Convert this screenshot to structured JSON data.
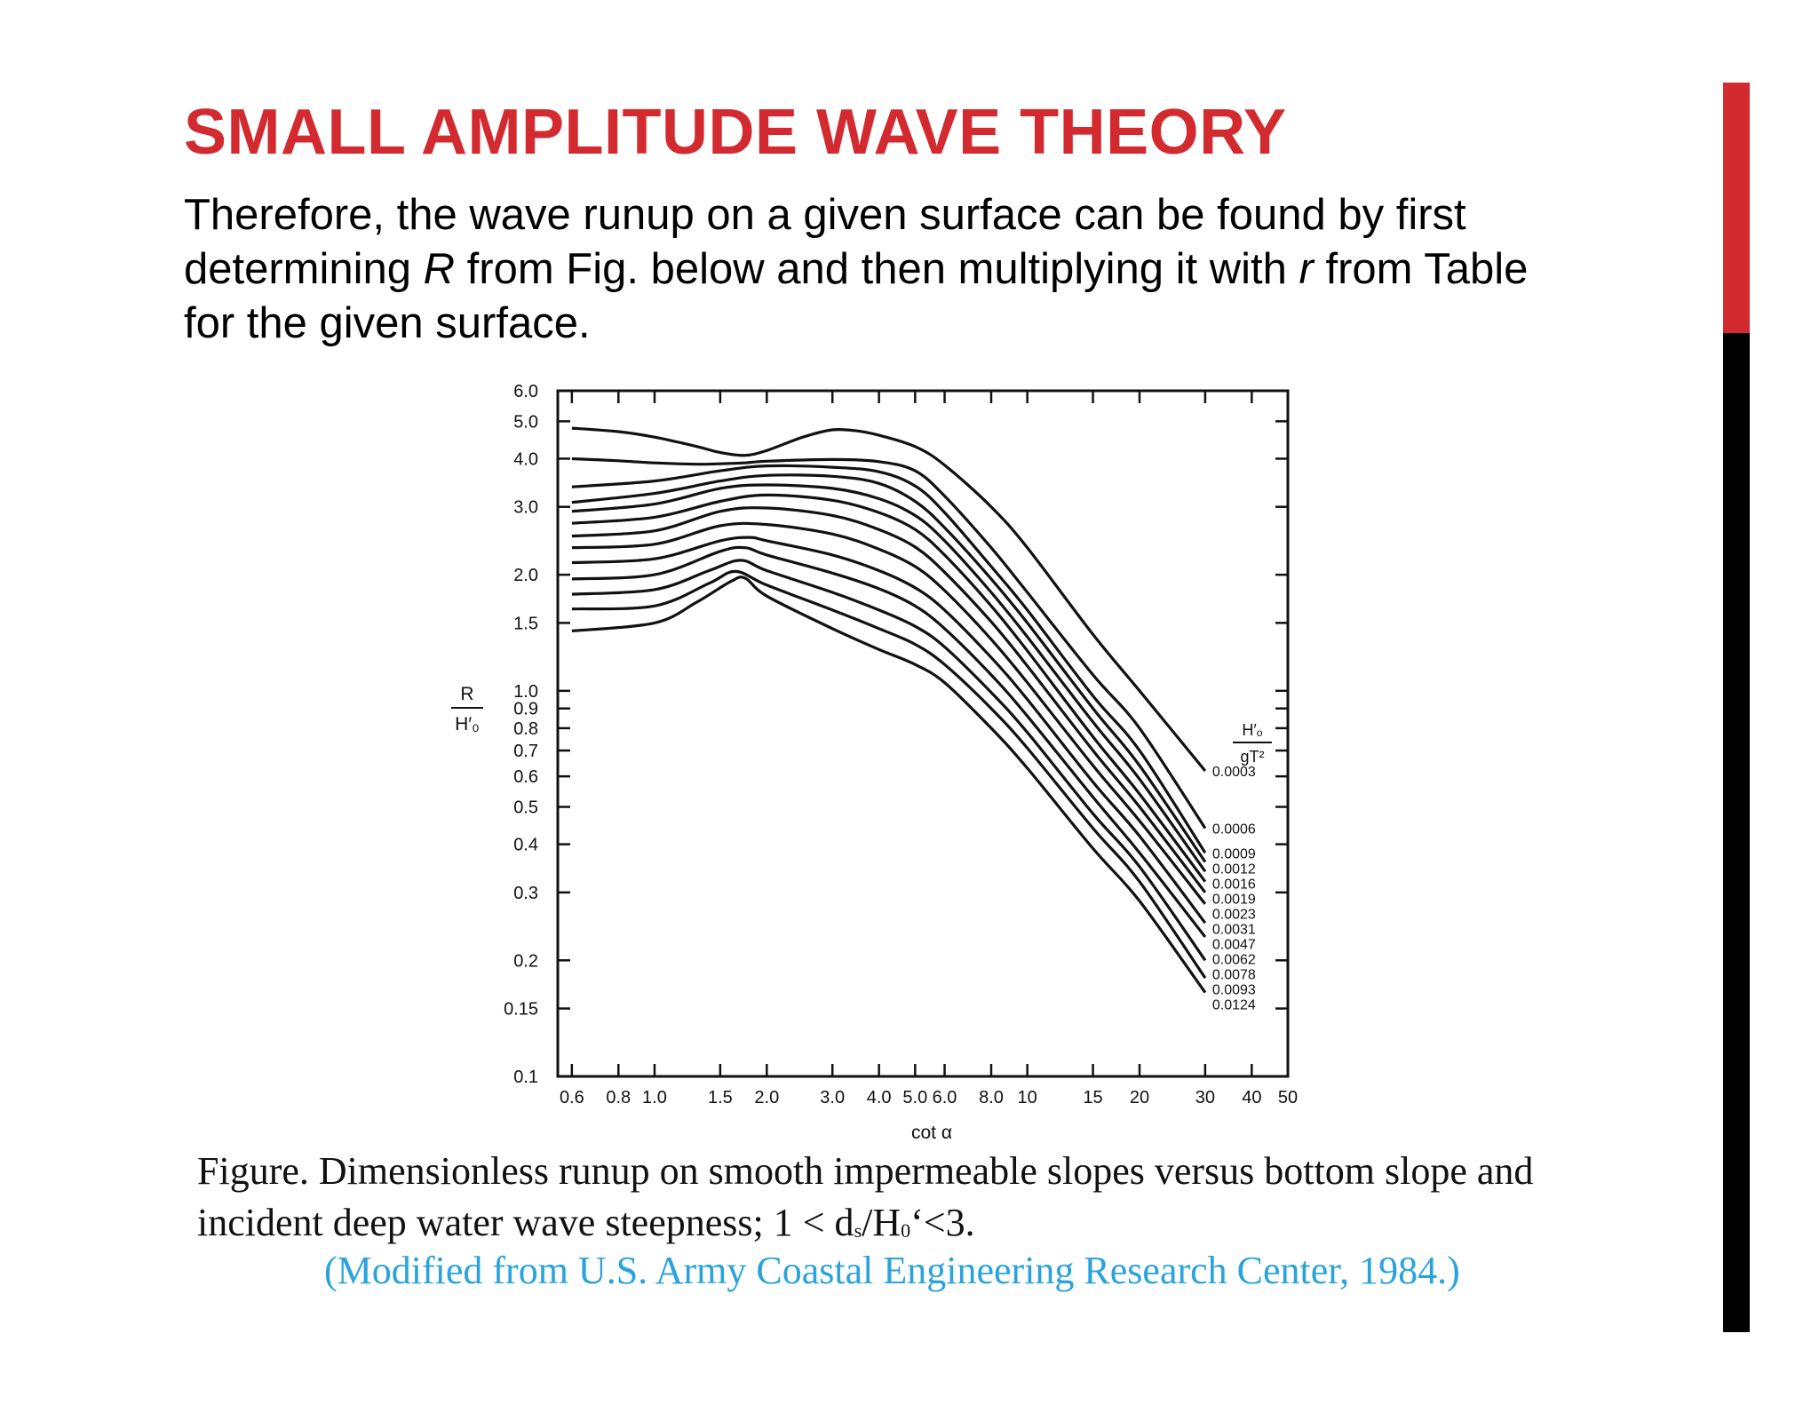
{
  "slide": {
    "title": "SMALL AMPLITUDE WAVE THEORY",
    "intro": {
      "line1": "Therefore, the wave runup on a given surface can be found by first",
      "line2_a": "determining ",
      "line2_R": "R",
      "line2_b": " from Fig. below and then multiplying it with ",
      "line2_r": "r",
      "line2_c": " from Table",
      "line3": "for the given surface."
    },
    "caption": {
      "line1": "Figure. Dimensionless runup on smooth impermeable slopes versus bottom slope and",
      "line2_a": "incident deep water wave steepness; 1 < d",
      "line2_s": "s",
      "line2_b": "/H",
      "line2_0": "0",
      "line2_c": "‘<3."
    },
    "source": "(Modified from U.S. Army Coastal Engineering Research Center, 1984.)",
    "colors": {
      "title": "#d32a2f",
      "source": "#2aa3dc",
      "bar_top": "#d32a2f",
      "bar_bottom": "#000000"
    }
  },
  "chart_data": {
    "type": "line",
    "x_scale": "log",
    "y_scale": "log",
    "xlim": [
      0.55,
      50
    ],
    "ylim": [
      0.1,
      6.0
    ],
    "xlabel": "cot α",
    "ylabel_num": "R",
    "ylabel_den": "H′₀",
    "legend_title_num": "H′ₒ",
    "legend_title_den": "gT²",
    "legend_placement": "right",
    "grid": false,
    "x_ticks": [
      {
        "value": 0.6,
        "label": "0.6"
      },
      {
        "value": 0.8,
        "label": "0.8"
      },
      {
        "value": 1.0,
        "label": "1.0"
      },
      {
        "value": 1.5,
        "label": "1.5"
      },
      {
        "value": 2.0,
        "label": "2.0"
      },
      {
        "value": 3.0,
        "label": "3.0"
      },
      {
        "value": 4.0,
        "label": "4.0"
      },
      {
        "value": 5.0,
        "label": "5.0"
      },
      {
        "value": 6.0,
        "label": "6.0"
      },
      {
        "value": 8.0,
        "label": "8.0"
      },
      {
        "value": 10,
        "label": "10"
      },
      {
        "value": 15,
        "label": "15"
      },
      {
        "value": 20,
        "label": "20"
      },
      {
        "value": 30,
        "label": "30"
      },
      {
        "value": 40,
        "label": "40"
      },
      {
        "value": 50,
        "label": "50"
      }
    ],
    "y_ticks": [
      {
        "value": 0.1,
        "label": "0.1"
      },
      {
        "value": 0.15,
        "label": "0.15"
      },
      {
        "value": 0.2,
        "label": "0.2"
      },
      {
        "value": 0.3,
        "label": "0.3"
      },
      {
        "value": 0.4,
        "label": "0.4"
      },
      {
        "value": 0.5,
        "label": "0.5"
      },
      {
        "value": 0.6,
        "label": "0.6"
      },
      {
        "value": 0.7,
        "label": "0.7"
      },
      {
        "value": 0.8,
        "label": "0.8"
      },
      {
        "value": 0.9,
        "label": "0.9"
      },
      {
        "value": 1.0,
        "label": "1.0"
      },
      {
        "value": 1.5,
        "label": "1.5"
      },
      {
        "value": 2.0,
        "label": "2.0"
      },
      {
        "value": 3.0,
        "label": "3.0"
      },
      {
        "value": 4.0,
        "label": "4.0"
      },
      {
        "value": 5.0,
        "label": "5.0"
      },
      {
        "value": 6.0,
        "label": "6.0"
      }
    ],
    "series": [
      {
        "name": "0.0003",
        "points": [
          [
            0.6,
            4.8
          ],
          [
            0.8,
            4.7
          ],
          [
            1.0,
            4.55
          ],
          [
            1.3,
            4.3
          ],
          [
            1.5,
            4.15
          ],
          [
            1.75,
            4.08
          ],
          [
            2.0,
            4.2
          ],
          [
            2.5,
            4.55
          ],
          [
            3.0,
            4.75
          ],
          [
            3.5,
            4.72
          ],
          [
            4.0,
            4.6
          ],
          [
            5.0,
            4.3
          ],
          [
            6.0,
            3.85
          ],
          [
            8.0,
            3.0
          ],
          [
            10,
            2.35
          ],
          [
            15,
            1.4
          ],
          [
            20,
            1.0
          ],
          [
            30,
            0.62
          ]
        ]
      },
      {
        "name": "0.0006",
        "points": [
          [
            0.6,
            4.0
          ],
          [
            0.8,
            3.95
          ],
          [
            1.0,
            3.9
          ],
          [
            1.3,
            3.87
          ],
          [
            1.5,
            3.88
          ],
          [
            1.75,
            3.9
          ],
          [
            2.0,
            3.94
          ],
          [
            3.0,
            3.98
          ],
          [
            4.0,
            3.93
          ],
          [
            5.0,
            3.72
          ],
          [
            6.0,
            3.2
          ],
          [
            8.0,
            2.35
          ],
          [
            10,
            1.8
          ],
          [
            15,
            1.1
          ],
          [
            20,
            0.8
          ],
          [
            30,
            0.44
          ]
        ]
      },
      {
        "name": "0.0009",
        "points": [
          [
            0.6,
            3.38
          ],
          [
            1.0,
            3.5
          ],
          [
            1.5,
            3.72
          ],
          [
            2.0,
            3.83
          ],
          [
            3.0,
            3.8
          ],
          [
            4.0,
            3.7
          ],
          [
            5.0,
            3.4
          ],
          [
            6.0,
            2.9
          ],
          [
            8.0,
            2.1
          ],
          [
            10,
            1.62
          ],
          [
            15,
            0.97
          ],
          [
            20,
            0.7
          ],
          [
            30,
            0.38
          ]
        ]
      },
      {
        "name": "0.0012",
        "points": [
          [
            0.6,
            3.08
          ],
          [
            1.0,
            3.25
          ],
          [
            1.5,
            3.5
          ],
          [
            2.0,
            3.62
          ],
          [
            3.0,
            3.6
          ],
          [
            4.0,
            3.45
          ],
          [
            5.0,
            3.1
          ],
          [
            6.0,
            2.65
          ],
          [
            8.0,
            1.95
          ],
          [
            10,
            1.5
          ],
          [
            15,
            0.9
          ],
          [
            20,
            0.64
          ],
          [
            30,
            0.36
          ]
        ]
      },
      {
        "name": "0.0016",
        "points": [
          [
            0.6,
            2.92
          ],
          [
            1.0,
            3.05
          ],
          [
            1.5,
            3.35
          ],
          [
            2.0,
            3.42
          ],
          [
            3.0,
            3.35
          ],
          [
            4.0,
            3.15
          ],
          [
            5.0,
            2.85
          ],
          [
            6.0,
            2.45
          ],
          [
            8.0,
            1.8
          ],
          [
            10,
            1.38
          ],
          [
            15,
            0.83
          ],
          [
            20,
            0.59
          ],
          [
            30,
            0.34
          ]
        ]
      },
      {
        "name": "0.0019",
        "points": [
          [
            0.6,
            2.72
          ],
          [
            1.0,
            2.82
          ],
          [
            1.5,
            3.1
          ],
          [
            2.0,
            3.22
          ],
          [
            3.0,
            3.12
          ],
          [
            4.0,
            2.9
          ],
          [
            5.0,
            2.62
          ],
          [
            6.0,
            2.25
          ],
          [
            8.0,
            1.66
          ],
          [
            10,
            1.27
          ],
          [
            15,
            0.76
          ],
          [
            20,
            0.54
          ],
          [
            30,
            0.32
          ]
        ]
      },
      {
        "name": "0.0023",
        "points": [
          [
            0.6,
            2.52
          ],
          [
            1.0,
            2.6
          ],
          [
            1.5,
            2.92
          ],
          [
            2.0,
            2.98
          ],
          [
            3.0,
            2.85
          ],
          [
            4.0,
            2.62
          ],
          [
            5.0,
            2.36
          ],
          [
            6.0,
            2.03
          ],
          [
            8.0,
            1.51
          ],
          [
            10,
            1.16
          ],
          [
            15,
            0.7
          ],
          [
            20,
            0.5
          ],
          [
            30,
            0.3
          ]
        ]
      },
      {
        "name": "0.0031",
        "points": [
          [
            0.6,
            2.35
          ],
          [
            1.0,
            2.4
          ],
          [
            1.5,
            2.68
          ],
          [
            2.0,
            2.7
          ],
          [
            3.0,
            2.55
          ],
          [
            4.0,
            2.33
          ],
          [
            5.0,
            2.1
          ],
          [
            6.0,
            1.82
          ],
          [
            8.0,
            1.36
          ],
          [
            10,
            1.05
          ],
          [
            15,
            0.64
          ],
          [
            20,
            0.46
          ],
          [
            30,
            0.28
          ]
        ]
      },
      {
        "name": "0.0047",
        "points": [
          [
            0.6,
            2.15
          ],
          [
            1.0,
            2.2
          ],
          [
            1.5,
            2.45
          ],
          [
            1.8,
            2.5
          ],
          [
            2.0,
            2.45
          ],
          [
            3.0,
            2.25
          ],
          [
            4.0,
            2.05
          ],
          [
            5.0,
            1.85
          ],
          [
            6.0,
            1.62
          ],
          [
            8.0,
            1.22
          ],
          [
            10,
            0.95
          ],
          [
            15,
            0.58
          ],
          [
            20,
            0.42
          ],
          [
            30,
            0.25
          ]
        ]
      },
      {
        "name": "0.0062",
        "points": [
          [
            0.6,
            1.95
          ],
          [
            1.0,
            2.0
          ],
          [
            1.5,
            2.3
          ],
          [
            1.75,
            2.35
          ],
          [
            2.0,
            2.25
          ],
          [
            3.0,
            2.02
          ],
          [
            4.0,
            1.84
          ],
          [
            5.0,
            1.66
          ],
          [
            6.0,
            1.45
          ],
          [
            8.0,
            1.1
          ],
          [
            10,
            0.86
          ],
          [
            15,
            0.53
          ],
          [
            20,
            0.38
          ],
          [
            30,
            0.23
          ]
        ]
      },
      {
        "name": "0.0078",
        "points": [
          [
            0.6,
            1.78
          ],
          [
            1.0,
            1.83
          ],
          [
            1.4,
            2.05
          ],
          [
            1.7,
            2.18
          ],
          [
            2.0,
            2.05
          ],
          [
            3.0,
            1.8
          ],
          [
            4.0,
            1.62
          ],
          [
            5.0,
            1.47
          ],
          [
            6.0,
            1.3
          ],
          [
            8.0,
            0.99
          ],
          [
            10,
            0.78
          ],
          [
            15,
            0.48
          ],
          [
            20,
            0.35
          ],
          [
            30,
            0.2
          ]
        ]
      },
      {
        "name": "0.0093",
        "points": [
          [
            0.6,
            1.63
          ],
          [
            1.0,
            1.66
          ],
          [
            1.4,
            1.9
          ],
          [
            1.65,
            2.04
          ],
          [
            2.0,
            1.88
          ],
          [
            3.0,
            1.62
          ],
          [
            4.0,
            1.45
          ],
          [
            5.0,
            1.32
          ],
          [
            6.0,
            1.17
          ],
          [
            8.0,
            0.9
          ],
          [
            10,
            0.71
          ],
          [
            15,
            0.44
          ],
          [
            20,
            0.32
          ],
          [
            30,
            0.18
          ]
        ]
      },
      {
        "name": "0.0124",
        "points": [
          [
            0.6,
            1.43
          ],
          [
            1.0,
            1.5
          ],
          [
            1.3,
            1.7
          ],
          [
            1.6,
            1.92
          ],
          [
            1.75,
            1.96
          ],
          [
            2.0,
            1.76
          ],
          [
            3.0,
            1.45
          ],
          [
            4.0,
            1.28
          ],
          [
            5.0,
            1.17
          ],
          [
            6.0,
            1.05
          ],
          [
            8.0,
            0.8
          ],
          [
            10,
            0.63
          ],
          [
            15,
            0.39
          ],
          [
            20,
            0.285
          ],
          [
            30,
            0.165
          ]
        ]
      }
    ]
  }
}
